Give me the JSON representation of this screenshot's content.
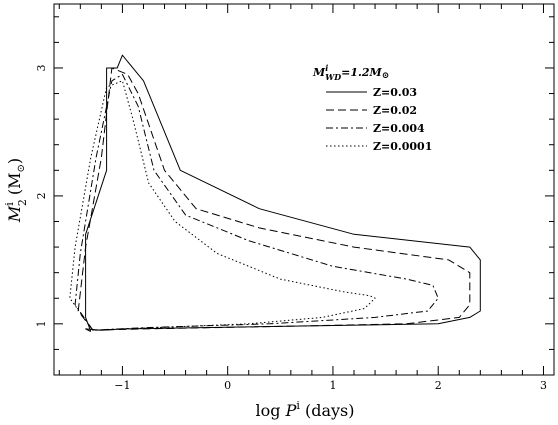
{
  "chart_data": {
    "type": "line",
    "xlabel_main": "log ",
    "xlabel_var": "P",
    "xlabel_sup": "i",
    "xlabel_unit": " (days)",
    "ylabel_var": "M",
    "ylabel_sup": "i",
    "ylabel_sub": "2",
    "ylabel_unit": "(M",
    "ylabel_sun": "⊙",
    "ylabel_close": ")",
    "xlim": [
      -1.65,
      3.1
    ],
    "ylim": [
      0.6,
      3.5
    ],
    "xticks": [
      -1,
      0,
      1,
      2,
      3
    ],
    "yticks": [
      1,
      2,
      3
    ],
    "xtick_labels": [
      "−1",
      "0",
      "1",
      "2",
      "3"
    ],
    "ytick_labels": [
      "1",
      "2",
      "3"
    ],
    "legend": {
      "title_var": "M",
      "title_sup": "i",
      "title_sub": "WD",
      "title_rest": "=1.2M",
      "title_sun": "⊙"
    },
    "series": [
      {
        "name": "Z=0.03",
        "dash": "solid",
        "x": [
          -1.3,
          -1.35,
          -1.35,
          -1.15,
          -1.15,
          -1.05,
          -1.0,
          -0.8,
          -0.45,
          -0.2,
          0.3,
          1.2,
          2.3,
          2.4,
          2.4,
          2.3,
          2.0,
          -1.0,
          -1.2,
          -1.35,
          -1.3
        ],
        "y": [
          0.94,
          1.05,
          1.7,
          2.2,
          3.0,
          3.0,
          3.1,
          2.9,
          2.2,
          2.1,
          1.9,
          1.7,
          1.6,
          1.5,
          1.1,
          1.05,
          1.0,
          0.96,
          0.95,
          0.96,
          0.94
        ]
      },
      {
        "name": "Z=0.02",
        "dash": "dashed",
        "x": [
          -1.28,
          -1.42,
          -1.35,
          -1.2,
          -1.1,
          -0.95,
          -0.85,
          -0.6,
          -0.3,
          0.3,
          1.2,
          2.1,
          2.3,
          2.3,
          2.2,
          1.7,
          0.5,
          -0.8,
          -1.28
        ],
        "y": [
          0.95,
          1.1,
          1.6,
          2.3,
          3.0,
          2.95,
          2.8,
          2.2,
          1.9,
          1.75,
          1.6,
          1.5,
          1.4,
          1.15,
          1.05,
          1.0,
          0.98,
          0.96,
          0.95
        ]
      },
      {
        "name": "Z=0.004",
        "dash": "dashdot",
        "x": [
          -1.28,
          -1.45,
          -1.4,
          -1.25,
          -1.1,
          -1.0,
          -0.85,
          -0.7,
          -0.4,
          0.2,
          1.0,
          1.7,
          1.95,
          2.0,
          1.9,
          1.4,
          0.4,
          -0.8,
          -1.28
        ],
        "y": [
          0.95,
          1.15,
          1.55,
          2.3,
          2.9,
          2.95,
          2.7,
          2.2,
          1.85,
          1.65,
          1.45,
          1.35,
          1.3,
          1.2,
          1.1,
          1.05,
          1.0,
          0.97,
          0.95
        ]
      },
      {
        "name": "Z=0.0001",
        "dash": "dotted",
        "x": [
          -1.28,
          -1.5,
          -1.45,
          -1.3,
          -1.15,
          -1.0,
          -0.9,
          -0.75,
          -0.5,
          -0.1,
          0.5,
          1.1,
          1.35,
          1.4,
          1.3,
          0.9,
          0.2,
          -0.7,
          -1.28
        ],
        "y": [
          0.95,
          1.2,
          1.6,
          2.3,
          2.85,
          2.9,
          2.6,
          2.1,
          1.8,
          1.55,
          1.35,
          1.25,
          1.22,
          1.2,
          1.12,
          1.05,
          1.0,
          0.97,
          0.95
        ]
      }
    ]
  }
}
